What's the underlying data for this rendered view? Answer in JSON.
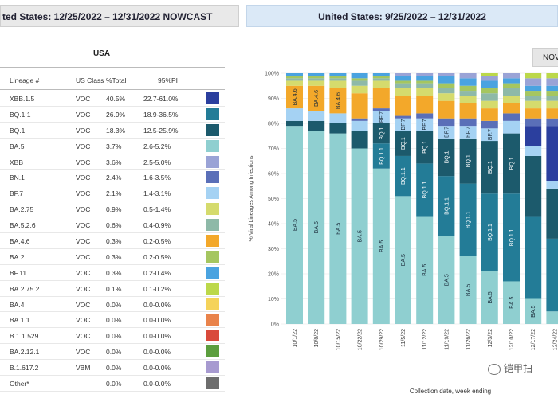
{
  "left_panel": {
    "banner": "ted States: 12/25/2022 – 12/31/2022 NOWCAST",
    "region": "USA",
    "columns": [
      "Lineage #",
      "US Class",
      "%Total",
      "95%PI"
    ],
    "rows": [
      {
        "lineage": "XBB.1.5",
        "class": "VOC",
        "total": "40.5%",
        "pi": "22.7-61.0%",
        "color": "#2b3f9e"
      },
      {
        "lineage": "BQ.1.1",
        "class": "VOC",
        "total": "26.9%",
        "pi": "18.9-36.5%",
        "color": "#237c97"
      },
      {
        "lineage": "BQ.1",
        "class": "VOC",
        "total": "18.3%",
        "pi": "12.5-25.9%",
        "color": "#1c5a6c"
      },
      {
        "lineage": "BA.5",
        "class": "VOC",
        "total": "3.7%",
        "pi": "2.6-5.2%",
        "color": "#8fcfd0"
      },
      {
        "lineage": "XBB",
        "class": "VOC",
        "total": "3.6%",
        "pi": "2.5-5.0%",
        "color": "#9aa3d6"
      },
      {
        "lineage": "BN.1",
        "class": "VOC",
        "total": "2.4%",
        "pi": "1.6-3.5%",
        "color": "#5a6fb8"
      },
      {
        "lineage": "BF.7",
        "class": "VOC",
        "total": "2.1%",
        "pi": "1.4-3.1%",
        "color": "#a5d2f3"
      },
      {
        "lineage": "BA.2.75",
        "class": "VOC",
        "total": "0.9%",
        "pi": "0.5-1.4%",
        "color": "#d5db6d"
      },
      {
        "lineage": "BA.5.2.6",
        "class": "VOC",
        "total": "0.6%",
        "pi": "0.4-0.9%",
        "color": "#8eb9a8"
      },
      {
        "lineage": "BA.4.6",
        "class": "VOC",
        "total": "0.3%",
        "pi": "0.2-0.5%",
        "color": "#f3a82a"
      },
      {
        "lineage": "BA.2",
        "class": "VOC",
        "total": "0.3%",
        "pi": "0.2-0.5%",
        "color": "#a5c660"
      },
      {
        "lineage": "BF.11",
        "class": "VOC",
        "total": "0.3%",
        "pi": "0.2-0.4%",
        "color": "#4aa3e0"
      },
      {
        "lineage": "BA.2.75.2",
        "class": "VOC",
        "total": "0.1%",
        "pi": "0.1-0.2%",
        "color": "#bcd84a"
      },
      {
        "lineage": "BA.4",
        "class": "VOC",
        "total": "0.0%",
        "pi": "0.0-0.0%",
        "color": "#f5d35a"
      },
      {
        "lineage": "BA.1.1",
        "class": "VOC",
        "total": "0.0%",
        "pi": "0.0-0.0%",
        "color": "#e9834b"
      },
      {
        "lineage": "B.1.1.529",
        "class": "VOC",
        "total": "0.0%",
        "pi": "0.0-0.0%",
        "color": "#d94a3b"
      },
      {
        "lineage": "BA.2.12.1",
        "class": "VOC",
        "total": "0.0%",
        "pi": "0.0-0.0%",
        "color": "#5c9e3e"
      },
      {
        "lineage": "B.1.617.2",
        "class": "VBM",
        "total": "0.0%",
        "pi": "0.0-0.0%",
        "color": "#a79ad0"
      },
      {
        "lineage": "Other*",
        "class": "",
        "total": "0.0%",
        "pi": "0.0-0.0%",
        "color": "#6d6d6d"
      }
    ]
  },
  "right_panel": {
    "banner": "United States: 9/25/2022 – 12/31/2022",
    "nowcast_tab": "NOV"
  },
  "watermark": "铠甲扫",
  "chart_data": {
    "type": "bar",
    "stacked": true,
    "title": "",
    "xlabel": "Collection date, week ending",
    "ylabel": "% Viral Lineages Among Infections",
    "ylim": [
      0,
      100
    ],
    "y_ticks": [
      "0%",
      "10%",
      "20%",
      "30%",
      "40%",
      "50%",
      "60%",
      "70%",
      "80%",
      "90%",
      "100%"
    ],
    "categories": [
      "10/1/22",
      "10/8/22",
      "10/15/22",
      "10/22/22",
      "10/29/22",
      "11/5/22",
      "11/12/22",
      "11/19/22",
      "11/26/22",
      "12/3/22",
      "12/10/22",
      "12/17/22",
      "12/24/22"
    ],
    "series": [
      {
        "name": "BA.5",
        "color": "#8fcfd0",
        "values": [
          79,
          77,
          76,
          70,
          62,
          51,
          43,
          35,
          27,
          21,
          17,
          10,
          5
        ]
      },
      {
        "name": "BQ.1.1",
        "color": "#237c97",
        "values": [
          0,
          0,
          0,
          0,
          10,
          16,
          21,
          24,
          29,
          31,
          35,
          33,
          29
        ]
      },
      {
        "name": "BQ.1",
        "color": "#1c5a6c",
        "values": [
          2,
          4,
          4,
          7,
          8,
          10,
          13,
          15,
          18,
          21,
          24,
          24,
          20
        ]
      },
      {
        "name": "BF.7",
        "color": "#a5d2f3",
        "values": [
          5,
          4,
          4,
          4,
          5,
          5,
          5,
          5,
          5,
          5,
          5,
          4,
          3
        ]
      },
      {
        "name": "XBB.1.5",
        "color": "#2b3f9e",
        "values": [
          0,
          0,
          0,
          0,
          0,
          0,
          0,
          0,
          0,
          0,
          0,
          8,
          22
        ]
      },
      {
        "name": "BN.1",
        "color": "#5a6fb8",
        "values": [
          0,
          0,
          0,
          1,
          1,
          1,
          2,
          3,
          3,
          3,
          3,
          3,
          3
        ]
      },
      {
        "name": "BA.4.6",
        "color": "#f3a82a",
        "values": [
          9,
          10,
          10,
          10,
          8,
          8,
          7,
          7,
          6,
          5,
          4,
          4,
          4
        ]
      },
      {
        "name": "BA.2.75",
        "color": "#d5db6d",
        "values": [
          2,
          2,
          3,
          3,
          3,
          3,
          3,
          3,
          3,
          3,
          3,
          3,
          3
        ]
      },
      {
        "name": "BA.5.2.6",
        "color": "#8eb9a8",
        "values": [
          1,
          1,
          1,
          2,
          1,
          2,
          2,
          2,
          2,
          3,
          3,
          2,
          2
        ]
      },
      {
        "name": "BA.2",
        "color": "#a5c660",
        "values": [
          1,
          1,
          1,
          1,
          1,
          1,
          1,
          2,
          2,
          2,
          2,
          2,
          2
        ]
      },
      {
        "name": "BF.11",
        "color": "#4aa3e0",
        "values": [
          1,
          1,
          1,
          2,
          1,
          2,
          2,
          3,
          3,
          3,
          2,
          2,
          2
        ]
      },
      {
        "name": "XBB",
        "color": "#9aa3d6",
        "values": [
          0,
          0,
          0,
          0,
          0,
          1,
          1,
          1,
          2,
          2,
          2,
          3,
          3
        ]
      },
      {
        "name": "BA.2.75.2",
        "color": "#bcd84a",
        "values": [
          0,
          0,
          0,
          0,
          0,
          0,
          0,
          0,
          0,
          1,
          0,
          2,
          2
        ]
      }
    ],
    "bar_labels": [
      {
        "series": "BA.5",
        "text": "BA.5",
        "bars": [
          0,
          1,
          2,
          3,
          4,
          5,
          6,
          7,
          8,
          9,
          10,
          11
        ]
      },
      {
        "series": "BQ.1.1",
        "text": "BQ.1.1",
        "bars": [
          4,
          5,
          6,
          7,
          8,
          9,
          10
        ]
      },
      {
        "series": "BQ.1",
        "text": "BQ.1",
        "bars": [
          4,
          5,
          6,
          7,
          8,
          9,
          10
        ]
      },
      {
        "series": "BF.7",
        "text": "BF.7",
        "bars": [
          4,
          5,
          6,
          7,
          8,
          9
        ]
      },
      {
        "series": "BA.4.6",
        "text": "BA.4.6",
        "bars": [
          0,
          1,
          2
        ]
      }
    ]
  }
}
